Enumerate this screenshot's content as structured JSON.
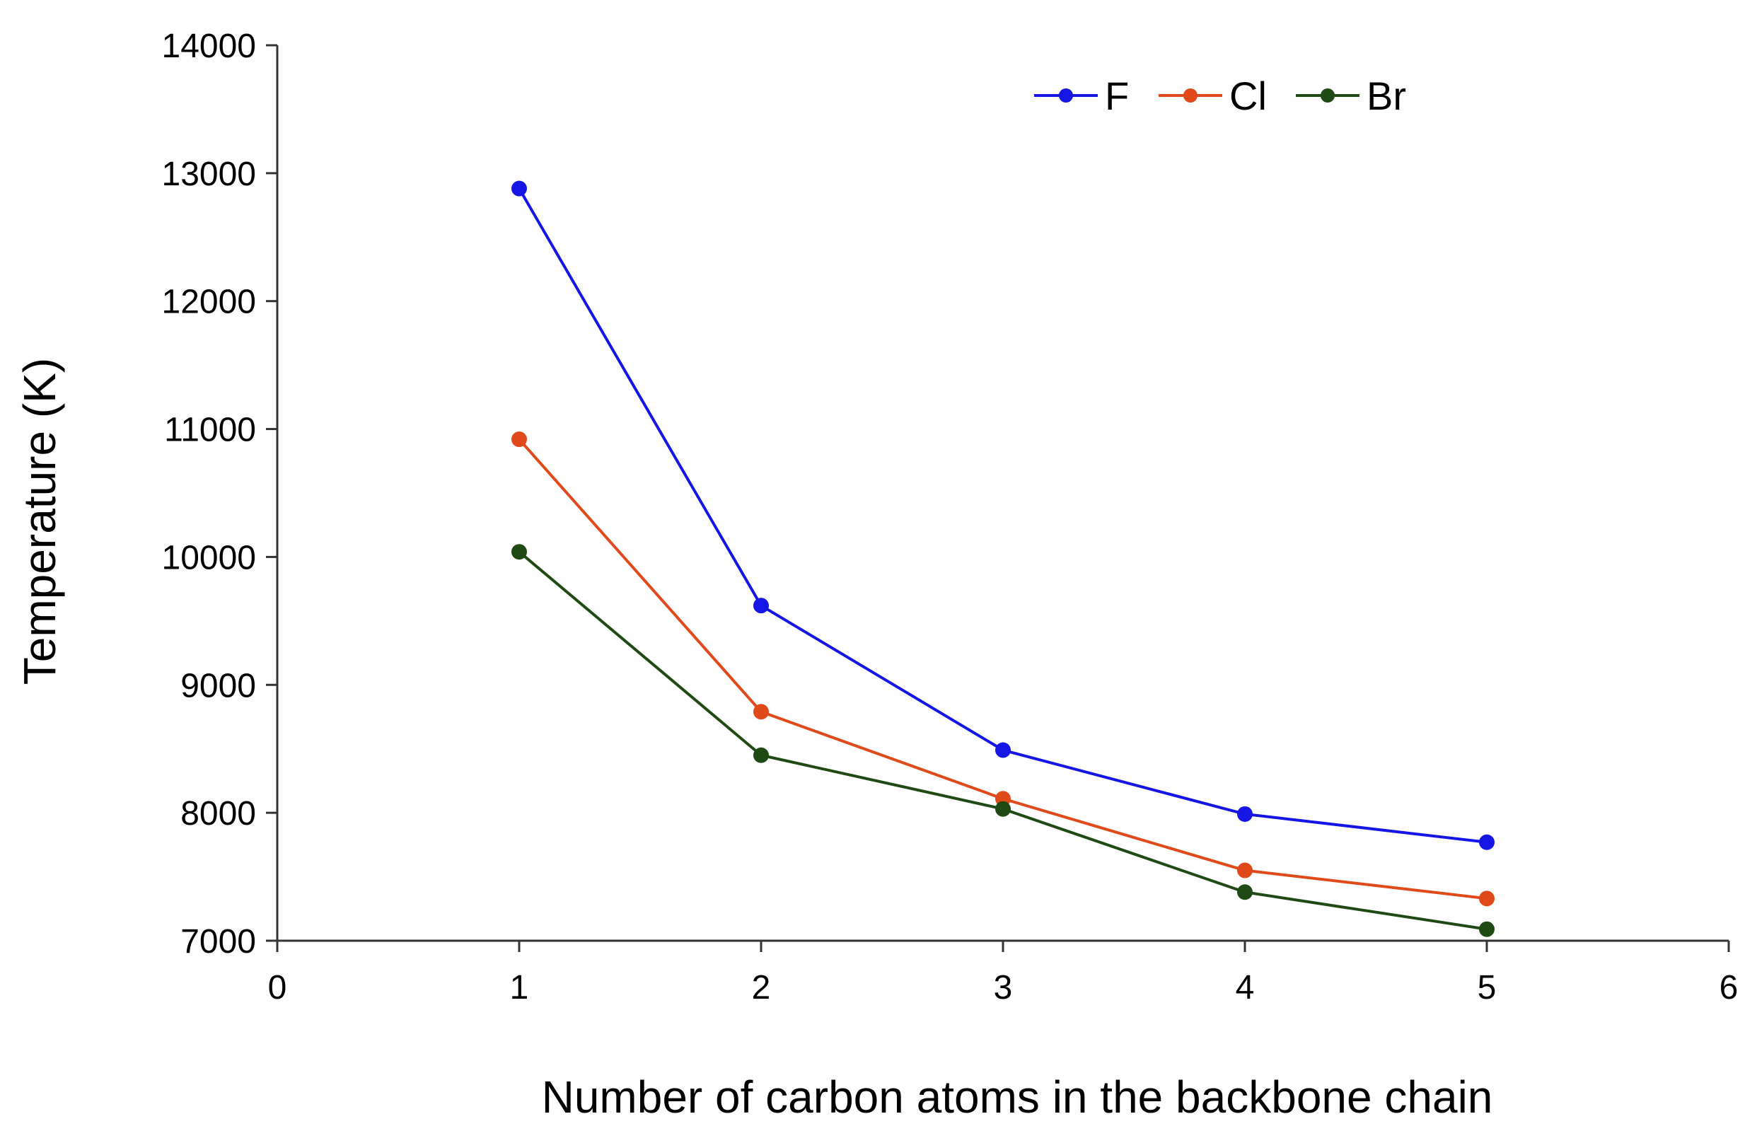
{
  "chart_data": {
    "type": "line",
    "title": "",
    "xlabel": "Number of carbon atoms in the backbone chain",
    "ylabel": "Temperature (K)",
    "xlim": [
      0,
      6
    ],
    "ylim": [
      7000,
      14000
    ],
    "x_ticks": [
      "0",
      "1",
      "2",
      "3",
      "4",
      "5",
      "6"
    ],
    "y_ticks": [
      "7000",
      "8000",
      "9000",
      "10000",
      "11000",
      "12000",
      "13000",
      "14000"
    ],
    "grid": false,
    "legend_position": "top-right",
    "x": [
      1,
      2,
      3,
      4,
      5
    ],
    "series": [
      {
        "name": "F",
        "color": "#1515e6",
        "values": [
          12880,
          9620,
          8490,
          7990,
          7770
        ]
      },
      {
        "name": "Cl",
        "color": "#e04a1a",
        "values": [
          10920,
          8790,
          8110,
          7550,
          7330
        ]
      },
      {
        "name": "Br",
        "color": "#1f4a14",
        "values": [
          10040,
          8450,
          8030,
          7380,
          7090
        ]
      }
    ]
  }
}
